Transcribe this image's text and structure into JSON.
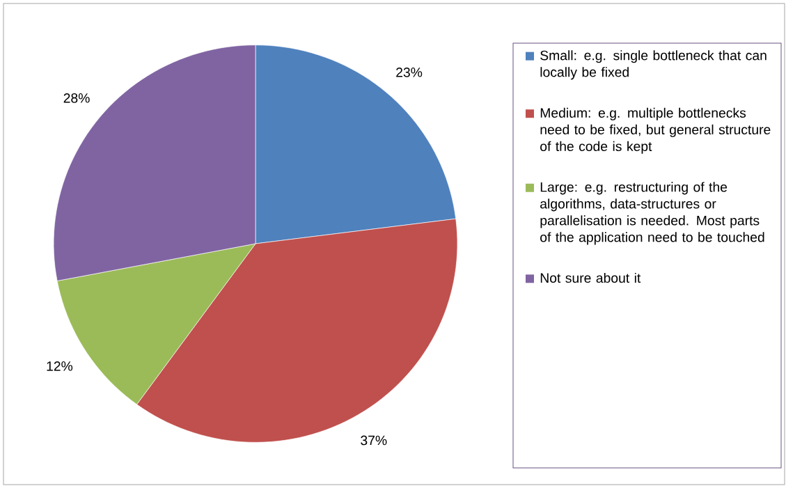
{
  "chart_data": {
    "type": "pie",
    "categories": [
      "Small: e.g. single bottleneck that can locally be fixed",
      "Medium: e.g. multiple bottlenecks need to be fixed, but general structure of the code is kept",
      "Large: e.g. restructuring of the algorithms, data-structures or parallelisation is needed. Most parts of the application need to be touched",
      "Not sure about it"
    ],
    "values": [
      23,
      37,
      12,
      28
    ],
    "value_labels": [
      "23%",
      "37%",
      "12%",
      "28%"
    ],
    "colors": [
      "#4f81bd",
      "#c0504d",
      "#9bbb59",
      "#8064a2"
    ],
    "legend": "right"
  }
}
